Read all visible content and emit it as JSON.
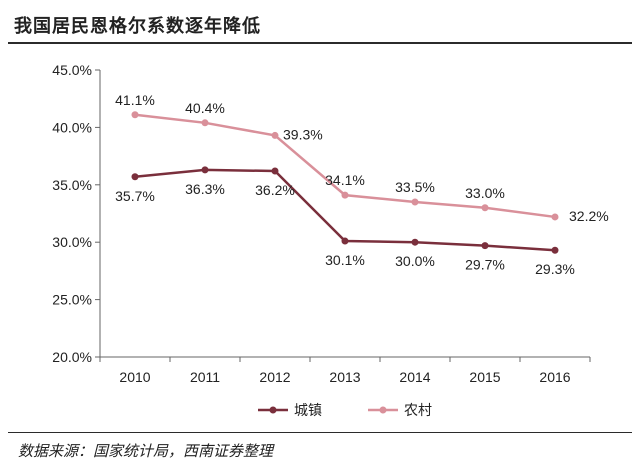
{
  "title": "我国居民恩格尔系数逐年降低",
  "source": "数据来源：国家统计局，西南证券整理",
  "chart_data": {
    "type": "line",
    "title": "我国居民恩格尔系数逐年降低",
    "xlabel": "",
    "ylabel": "",
    "categories": [
      "2010",
      "2011",
      "2012",
      "2013",
      "2014",
      "2015",
      "2016"
    ],
    "ylim": [
      20.0,
      45.0
    ],
    "yticks": [
      20.0,
      25.0,
      30.0,
      35.0,
      40.0,
      45.0
    ],
    "ytick_labels": [
      "20.0%",
      "25.0%",
      "30.0%",
      "35.0%",
      "40.0%",
      "45.0%"
    ],
    "grid": false,
    "legend_position": "bottom",
    "series": [
      {
        "name": "城镇",
        "color": "#7a2f3c",
        "values": [
          35.7,
          36.3,
          36.2,
          30.1,
          30.0,
          29.7,
          29.3
        ],
        "labels": [
          "35.7%",
          "36.3%",
          "36.2%",
          "30.1%",
          "30.0%",
          "29.7%",
          "29.3%"
        ],
        "label_position": "below"
      },
      {
        "name": "农村",
        "color": "#d9909a",
        "values": [
          41.1,
          40.4,
          39.3,
          34.1,
          33.5,
          33.0,
          32.2
        ],
        "labels": [
          "41.1%",
          "40.4%",
          "39.3%",
          "34.1%",
          "33.5%",
          "33.0%",
          "32.2%"
        ],
        "label_position": "above"
      }
    ]
  }
}
